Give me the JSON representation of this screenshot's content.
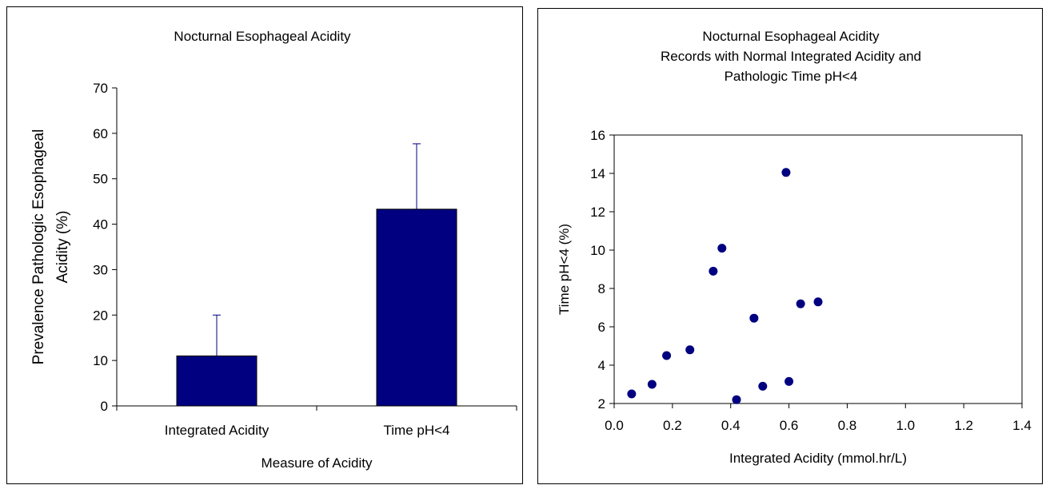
{
  "chart_data": [
    {
      "type": "bar",
      "title": "Nocturnal Esophageal Acidity",
      "xlabel": "Measure of Acidity",
      "ylabel_lines": [
        "Prevalence Pathologic Esophageal",
        "Acidity (%)"
      ],
      "categories": [
        "Integrated Acidity",
        "Time pH<4"
      ],
      "values": [
        11,
        43.3
      ],
      "error_upper": [
        20,
        57.7
      ],
      "ylim": [
        0,
        70
      ],
      "yticks": [
        "0",
        "10",
        "20",
        "30",
        "40",
        "50",
        "60",
        "70"
      ],
      "grid": false,
      "bar_color": "#000080"
    },
    {
      "type": "scatter",
      "title_lines": [
        "Nocturnal Esophageal Acidity",
        "Records with Normal Integrated Acidity and",
        "Pathologic Time pH<4"
      ],
      "xlabel": "Integrated Acidity (mmol.hr/L)",
      "ylabel": "Time pH<4 (%)",
      "xlim": [
        0,
        1.4
      ],
      "ylim": [
        2,
        16
      ],
      "xticks": [
        "0.0",
        "0.2",
        "0.4",
        "0.6",
        "0.8",
        "1.0",
        "1.2",
        "1.4"
      ],
      "yticks": [
        "2",
        "4",
        "6",
        "8",
        "10",
        "12",
        "14",
        "16"
      ],
      "grid": false,
      "marker_color": "#000080",
      "points": [
        {
          "x": 0.06,
          "y": 2.5
        },
        {
          "x": 0.13,
          "y": 3.0
        },
        {
          "x": 0.18,
          "y": 4.5
        },
        {
          "x": 0.26,
          "y": 4.8
        },
        {
          "x": 0.34,
          "y": 8.9
        },
        {
          "x": 0.37,
          "y": 10.1
        },
        {
          "x": 0.42,
          "y": 2.2
        },
        {
          "x": 0.48,
          "y": 6.45
        },
        {
          "x": 0.51,
          "y": 2.9
        },
        {
          "x": 0.59,
          "y": 14.05
        },
        {
          "x": 0.6,
          "y": 3.15
        },
        {
          "x": 0.64,
          "y": 7.2
        },
        {
          "x": 0.7,
          "y": 7.3
        }
      ]
    }
  ]
}
